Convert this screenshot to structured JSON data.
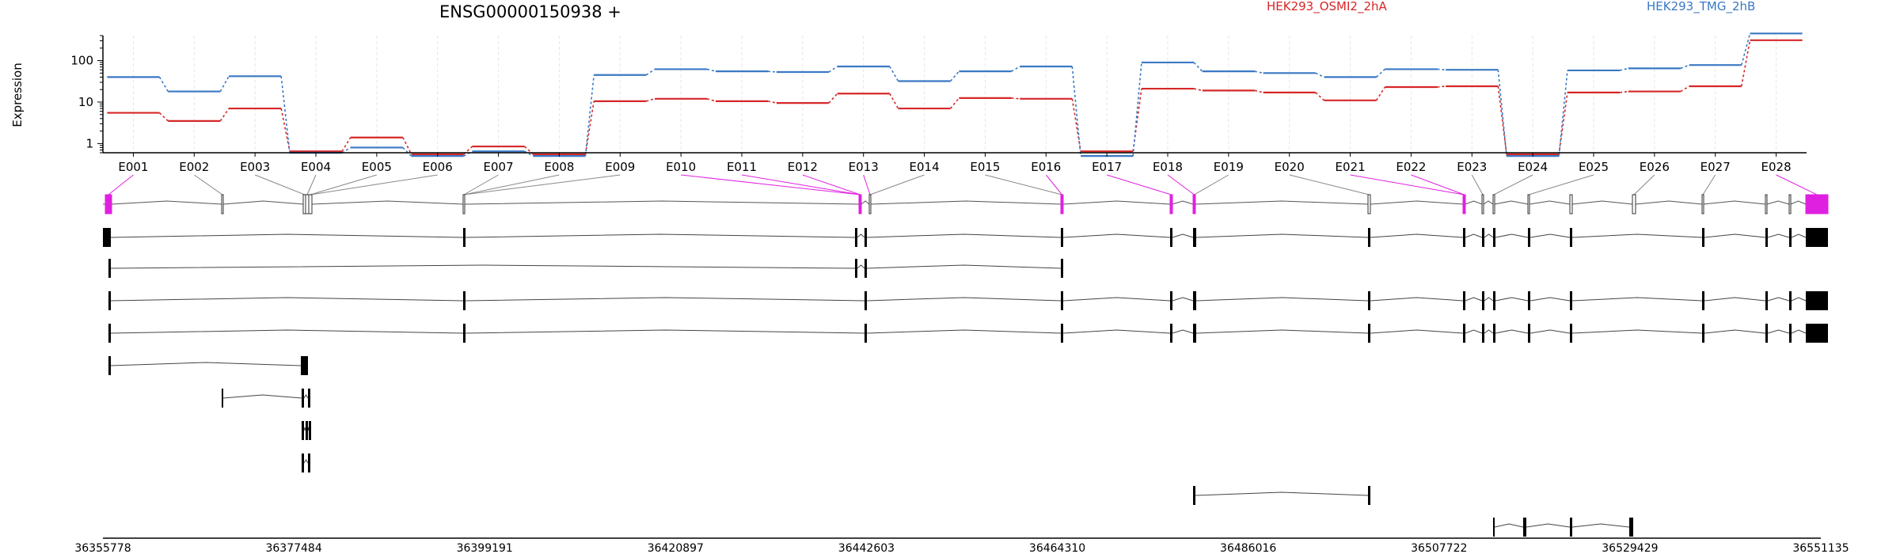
{
  "chart_data": {
    "type": "line",
    "title": "ENSG00000150938 +",
    "ylabel": "Expression",
    "yscale": "log",
    "ylim": [
      0.6,
      400
    ],
    "yticks": [
      1,
      10,
      100
    ],
    "yticklabels": [
      "1",
      "10",
      "100"
    ],
    "grid": "vertical-dashed",
    "legend_position": "top",
    "categories": [
      "E001",
      "E002",
      "E003",
      "E004",
      "E005",
      "E006",
      "E007",
      "E008",
      "E009",
      "E010",
      "E011",
      "E012",
      "E013",
      "E014",
      "E015",
      "E016",
      "E017",
      "E018",
      "E019",
      "E020",
      "E021",
      "E022",
      "E023",
      "E024",
      "E025",
      "E026",
      "E027",
      "E028"
    ],
    "series": [
      {
        "name": "HEK293_OSMI2_2hA",
        "color": "#d62728",
        "values": [
          5.5,
          3.5,
          7,
          0.65,
          1.4,
          0.55,
          0.85,
          0.55,
          10.5,
          12,
          10.5,
          9.5,
          16,
          7,
          12.5,
          12,
          0.65,
          21,
          19,
          17,
          11,
          23,
          24,
          0.55,
          17,
          18,
          24,
          310
        ]
      },
      {
        "name": "HEK293_TMG_2hB",
        "color": "#3a78c3",
        "values": [
          40,
          18,
          42,
          0.6,
          0.8,
          0.5,
          0.65,
          0.5,
          45,
          62,
          55,
          53,
          72,
          32,
          55,
          72,
          0.5,
          90,
          55,
          50,
          40,
          62,
          60,
          0.5,
          58,
          65,
          78,
          450
        ]
      }
    ],
    "gene_model": {
      "genomic_ticks": [
        "36355778",
        "36377484",
        "36399191",
        "36420897",
        "36442603",
        "36464310",
        "36486016",
        "36507722",
        "36529429",
        "36551135"
      ],
      "highlight_color": "#e020e0",
      "highlighted_exons": [
        "E001",
        "E010",
        "E011",
        "E012",
        "E013",
        "E016",
        "E017",
        "E018",
        "E021",
        "E022",
        "E028"
      ]
    }
  }
}
